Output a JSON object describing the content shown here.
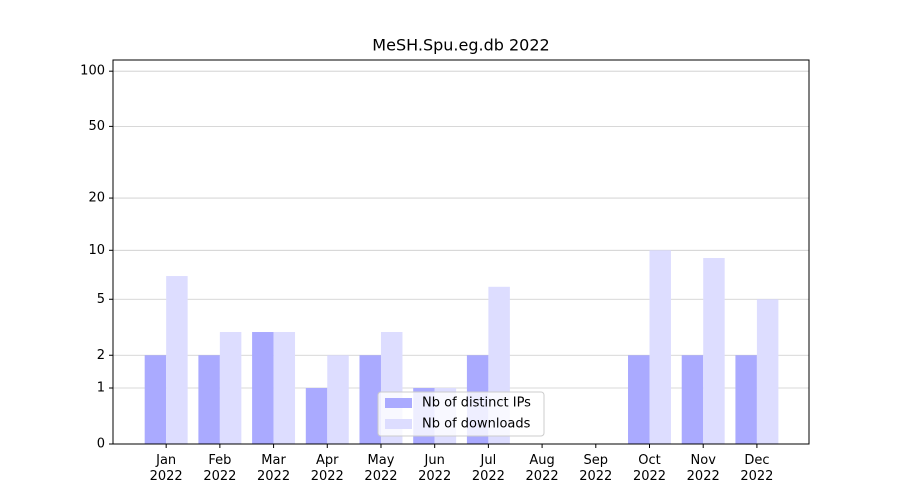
{
  "chart_data": {
    "type": "bar",
    "title": "MeSH.Spu.eg.db 2022",
    "categories": [
      "Jan\n2022",
      "Feb\n2022",
      "Mar\n2022",
      "Apr\n2022",
      "May\n2022",
      "Jun\n2022",
      "Jul\n2022",
      "Aug\n2022",
      "Sep\n2022",
      "Oct\n2022",
      "Nov\n2022",
      "Dec\n2022"
    ],
    "series": [
      {
        "name": "Nb of distinct IPs",
        "color": "#aaaaff",
        "values": [
          2,
          2,
          3,
          1,
          2,
          1,
          2,
          0,
          0,
          2,
          2,
          2
        ]
      },
      {
        "name": "Nb of downloads",
        "color": "#ddddff",
        "values": [
          7,
          3,
          3,
          2,
          3,
          1,
          6,
          0,
          0,
          10,
          9,
          5
        ]
      }
    ],
    "yscale": "log1p",
    "ylim": [
      0,
      115
    ],
    "yticks": [
      0,
      1,
      2,
      5,
      10,
      20,
      50,
      100
    ],
    "grid": true,
    "legend": "lower center"
  }
}
